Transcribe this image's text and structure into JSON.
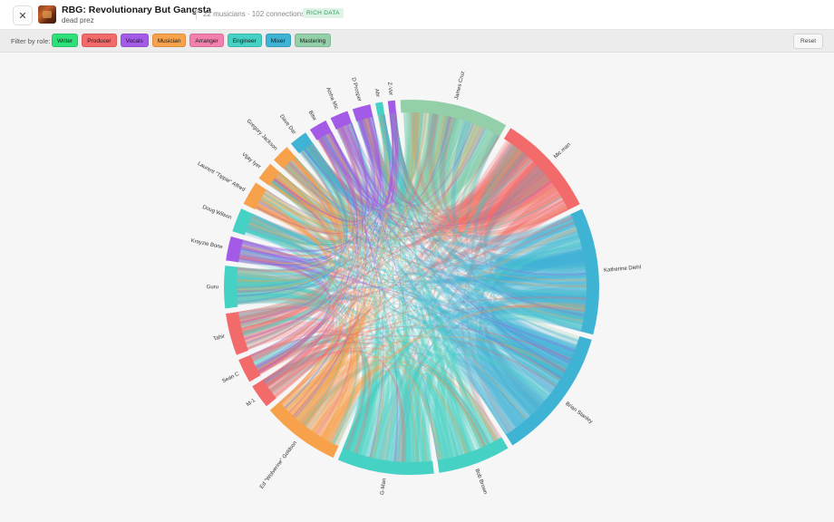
{
  "header": {
    "title": "RBG: Revolutionary But Gangsta",
    "artist": "dead prez",
    "stats": "22 musicians · 102 connections",
    "badge": "RICH DATA",
    "close_icon": "close-icon"
  },
  "filter": {
    "label": "Filter by role:",
    "reset_label": "Reset",
    "roles": [
      {
        "label": "Writer",
        "color": "#2ee07a"
      },
      {
        "label": "Producer",
        "color": "#f26a6a"
      },
      {
        "label": "Vocals",
        "color": "#a35ae6"
      },
      {
        "label": "Musician",
        "color": "#f7a14a"
      },
      {
        "label": "Arranger",
        "color": "#f27fae"
      },
      {
        "label": "Engineer",
        "color": "#45d1c4"
      },
      {
        "label": "Mixer",
        "color": "#3fb3d4"
      },
      {
        "label": "Mastering",
        "color": "#93cfa9"
      }
    ]
  },
  "chord": {
    "nodes": [
      {
        "name": "James Cruz",
        "role": "Mastering",
        "weight": 9
      },
      {
        "name": "Mic.man",
        "role": "Producer",
        "weight": 8.5
      },
      {
        "name": "Katherine Diehl",
        "role": "Mixer",
        "weight": 10.5
      },
      {
        "name": "Brian Stanley",
        "role": "Mixer",
        "weight": 11
      },
      {
        "name": "Bob Brown",
        "role": "Engineer",
        "weight": 6
      },
      {
        "name": "G-Man",
        "role": "Engineer",
        "weight": 8
      },
      {
        "name": "Ed \"Wolverine\" Goldson",
        "role": "Musician",
        "weight": 6.5
      },
      {
        "name": "M-1",
        "role": "Producer",
        "weight": 2
      },
      {
        "name": "Sean C",
        "role": "Producer",
        "weight": 2
      },
      {
        "name": "Tahir",
        "role": "Producer",
        "weight": 3.5
      },
      {
        "name": "Guru",
        "role": "Engineer",
        "weight": 3.5
      },
      {
        "name": "Krayzie Bone",
        "role": "Vocals",
        "weight": 2
      },
      {
        "name": "Doug Wilson",
        "role": "Engineer",
        "weight": 2
      },
      {
        "name": "Laurent \"Tippie\" Alfred",
        "role": "Musician",
        "weight": 2
      },
      {
        "name": "Vijay Iyer",
        "role": "Musician",
        "weight": 1.5
      },
      {
        "name": "Gregory Jackson",
        "role": "Musician",
        "weight": 1.5
      },
      {
        "name": "Dave Dar",
        "role": "Mixer",
        "weight": 1.5
      },
      {
        "name": "Bitw",
        "role": "Vocals",
        "weight": 1.5
      },
      {
        "name": "Aisha Mic",
        "role": "Vocals",
        "weight": 1.5
      },
      {
        "name": "D Prosper",
        "role": "Vocals",
        "weight": 1.5
      },
      {
        "name": "Abr",
        "role": "Engineer",
        "weight": 0.6
      },
      {
        "name": "Z-Ver",
        "role": "Vocals",
        "weight": 0.6
      }
    ]
  }
}
